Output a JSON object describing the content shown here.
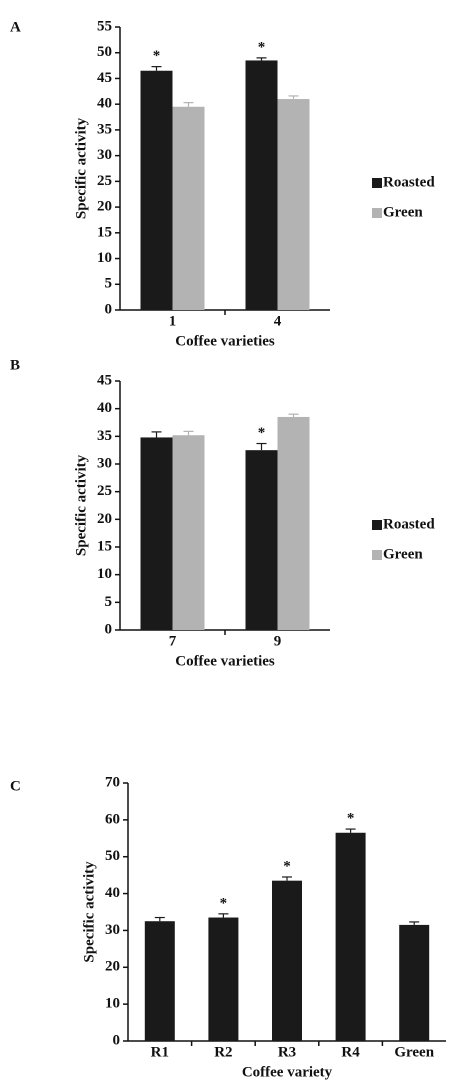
{
  "chart_data": [
    {
      "type": "bar",
      "panel": "A",
      "xlabel": "Coffee varieties",
      "ylabel": "Specific activity",
      "categories": [
        "1",
        "4"
      ],
      "series": [
        {
          "name": "Roasted",
          "color": "#1a1a1a",
          "values": [
            46.5,
            48.5
          ],
          "errors": [
            0.8,
            0.5
          ],
          "annotations": [
            "*",
            "*"
          ]
        },
        {
          "name": "Green",
          "color": "#b3b3b3",
          "values": [
            39.5,
            41
          ],
          "errors": [
            0.8,
            0.6
          ],
          "annotations": [
            null,
            null
          ]
        }
      ],
      "ylim": [
        0,
        55
      ],
      "yticks": [
        0,
        5,
        10,
        15,
        20,
        25,
        30,
        35,
        40,
        45,
        50,
        55
      ],
      "legend": "right"
    },
    {
      "type": "bar",
      "panel": "B",
      "xlabel": "Coffee varieties",
      "ylabel": "Specific activity",
      "categories": [
        "7",
        "9"
      ],
      "series": [
        {
          "name": "Roasted",
          "color": "#1a1a1a",
          "values": [
            34.8,
            32.5
          ],
          "errors": [
            1,
            1.2
          ],
          "annotations": [
            null,
            "*"
          ]
        },
        {
          "name": "Green",
          "color": "#b3b3b3",
          "values": [
            35.2,
            38.5
          ],
          "errors": [
            0.7,
            0.5
          ],
          "annotations": [
            null,
            null
          ]
        }
      ],
      "ylim": [
        0,
        45
      ],
      "yticks": [
        0,
        5,
        10,
        15,
        20,
        25,
        30,
        35,
        40,
        45
      ],
      "legend": "right"
    },
    {
      "type": "bar",
      "panel": "C",
      "xlabel": "Coffee variety",
      "ylabel": "Specific activity",
      "categories": [
        "R1",
        "R2",
        "R3",
        "R4",
        "Green"
      ],
      "series": [
        {
          "color": "#1a1a1a",
          "values": [
            32.5,
            33.5,
            43.5,
            56.5,
            31.5
          ],
          "errors": [
            1,
            1,
            1,
            1,
            0.8
          ],
          "annotations": [
            null,
            "*",
            "*",
            "*",
            null
          ]
        }
      ],
      "ylim": [
        0,
        70
      ],
      "yticks": [
        0,
        10,
        20,
        30,
        40,
        50,
        60,
        70
      ]
    }
  ]
}
